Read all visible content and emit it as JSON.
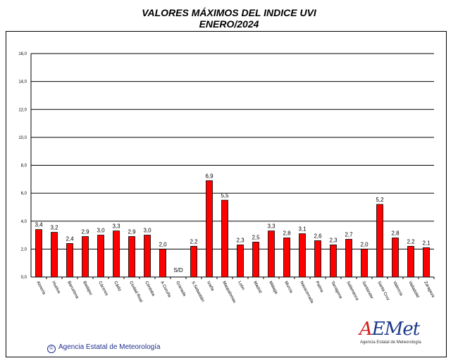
{
  "title_line1": "VALORES MÁXIMOS DEL INDICE UVI",
  "title_line2": "ENERO/2024",
  "credit": "Agencia Estatal de Meteorología",
  "logo": {
    "word": "AEMet",
    "sub": "Agencia Estatal de Meteorología"
  },
  "colors": {
    "bar": "#ff0000",
    "bar_border": "#000000",
    "grid": "#000000",
    "background": "#ffffff"
  },
  "chart_data": {
    "type": "bar",
    "title": "VALORES MÁXIMOS DEL INDICE UVI",
    "subtitle": "ENERO/2024",
    "ylim": [
      0,
      16
    ],
    "yticks": [
      0,
      2,
      4,
      6,
      8,
      10,
      12,
      14,
      16
    ],
    "ytick_labels": [
      "0,0",
      "2,0",
      "4,0",
      "6,0",
      "8,0",
      "10,0",
      "12,0",
      "14,0",
      "16,0"
    ],
    "grid": true,
    "categories": [
      "Almería",
      "Huelva",
      "Barcelona",
      "Badajoz",
      "Cáceres",
      "Cádiz",
      "Ciudad Real",
      "Córdoba",
      "A Coruña",
      "Granada",
      "S.Sebastián",
      "Izaña",
      "Maspalomas",
      "León",
      "Madrid",
      "Málaga",
      "Murcia",
      "Navacerrada",
      "Palma",
      "Tarragona",
      "Salamanca",
      "Santander",
      "Santa Cruz",
      "Valencia",
      "Valladolid",
      "Zaragoza"
    ],
    "values": [
      3.4,
      3.2,
      2.4,
      2.9,
      3.0,
      3.3,
      2.9,
      3.0,
      2.0,
      null,
      2.2,
      6.9,
      5.5,
      2.3,
      2.5,
      3.3,
      2.8,
      3.1,
      2.6,
      2.3,
      2.7,
      2.0,
      5.2,
      2.8,
      2.2,
      2.1
    ],
    "value_labels": [
      "3,4",
      "3,2",
      "2,4",
      "2,9",
      "3,0",
      "3,3",
      "2,9",
      "3,0",
      "2,0",
      "S/D",
      "2,2",
      "6,9",
      "5,5",
      "2,3",
      "2,5",
      "3,3",
      "2,8",
      "3,1",
      "2,6",
      "2,3",
      "2,7",
      "2,0",
      "5,2",
      "2,8",
      "2,2",
      "2,1"
    ]
  }
}
